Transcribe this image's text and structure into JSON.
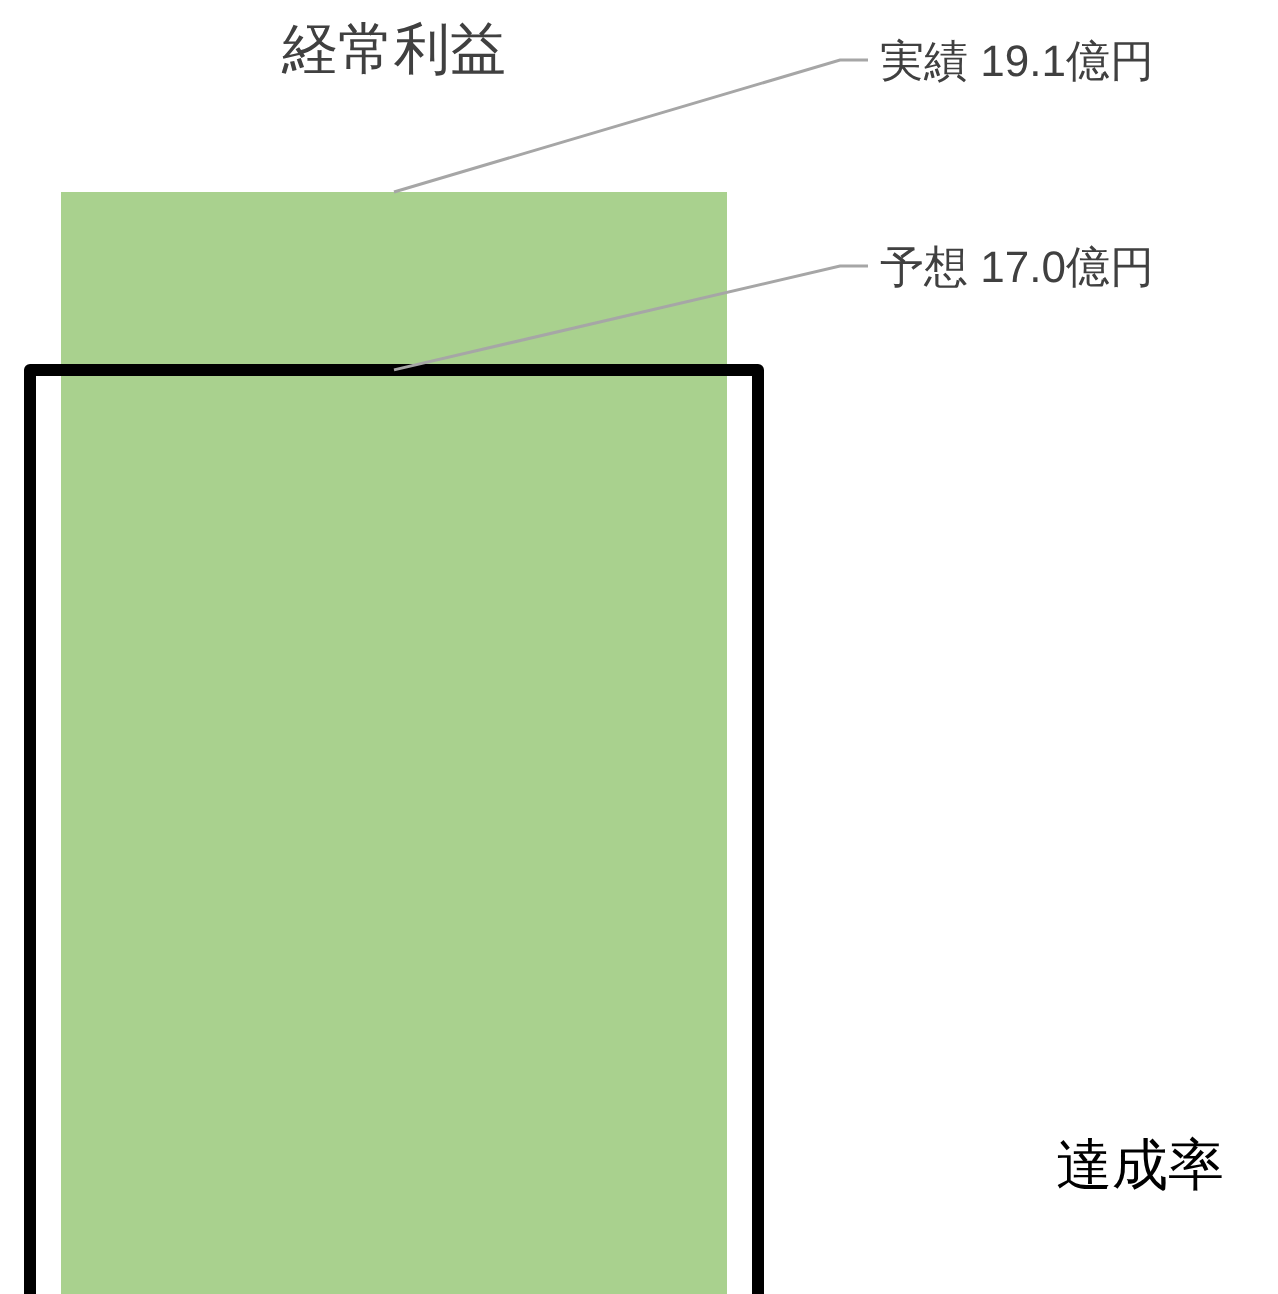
{
  "chart_data": {
    "type": "bar",
    "title": "経常利益",
    "categories": [
      null
    ],
    "series": [
      {
        "color": "#a9d18e",
        "values": [
          19.1
        ],
        "value_labels": [
          "実績 19.1億円"
        ]
      },
      {
        "color": "#000000",
        "values": [
          17.0
        ],
        "value_labels": [
          "予想 17.0億円"
        ]
      }
    ],
    "annotations": [
      "達成率"
    ]
  }
}
